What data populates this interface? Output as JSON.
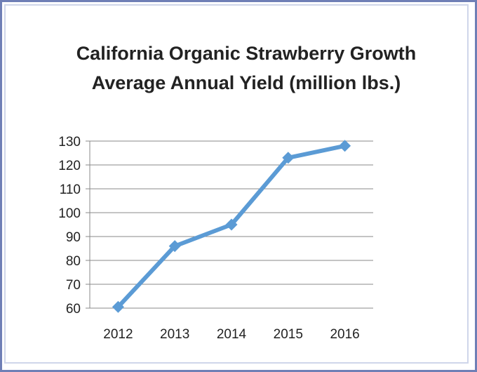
{
  "chart_data": {
    "type": "line",
    "title": [
      "California Organic Strawberry Growth",
      "Average Annual Yield (million lbs.)"
    ],
    "categories": [
      "2012",
      "2013",
      "2014",
      "2015",
      "2016"
    ],
    "series": [
      {
        "values": [
          60.5,
          86,
          95,
          123,
          128
        ]
      }
    ],
    "ylim": [
      60,
      130
    ],
    "yticks": [
      60,
      70,
      80,
      90,
      100,
      110,
      120,
      130
    ],
    "grid": "horizontal",
    "legend": "none",
    "line_color": "#5b9bd5",
    "marker": "diamond",
    "gridline_color": "#8a8a8a"
  }
}
